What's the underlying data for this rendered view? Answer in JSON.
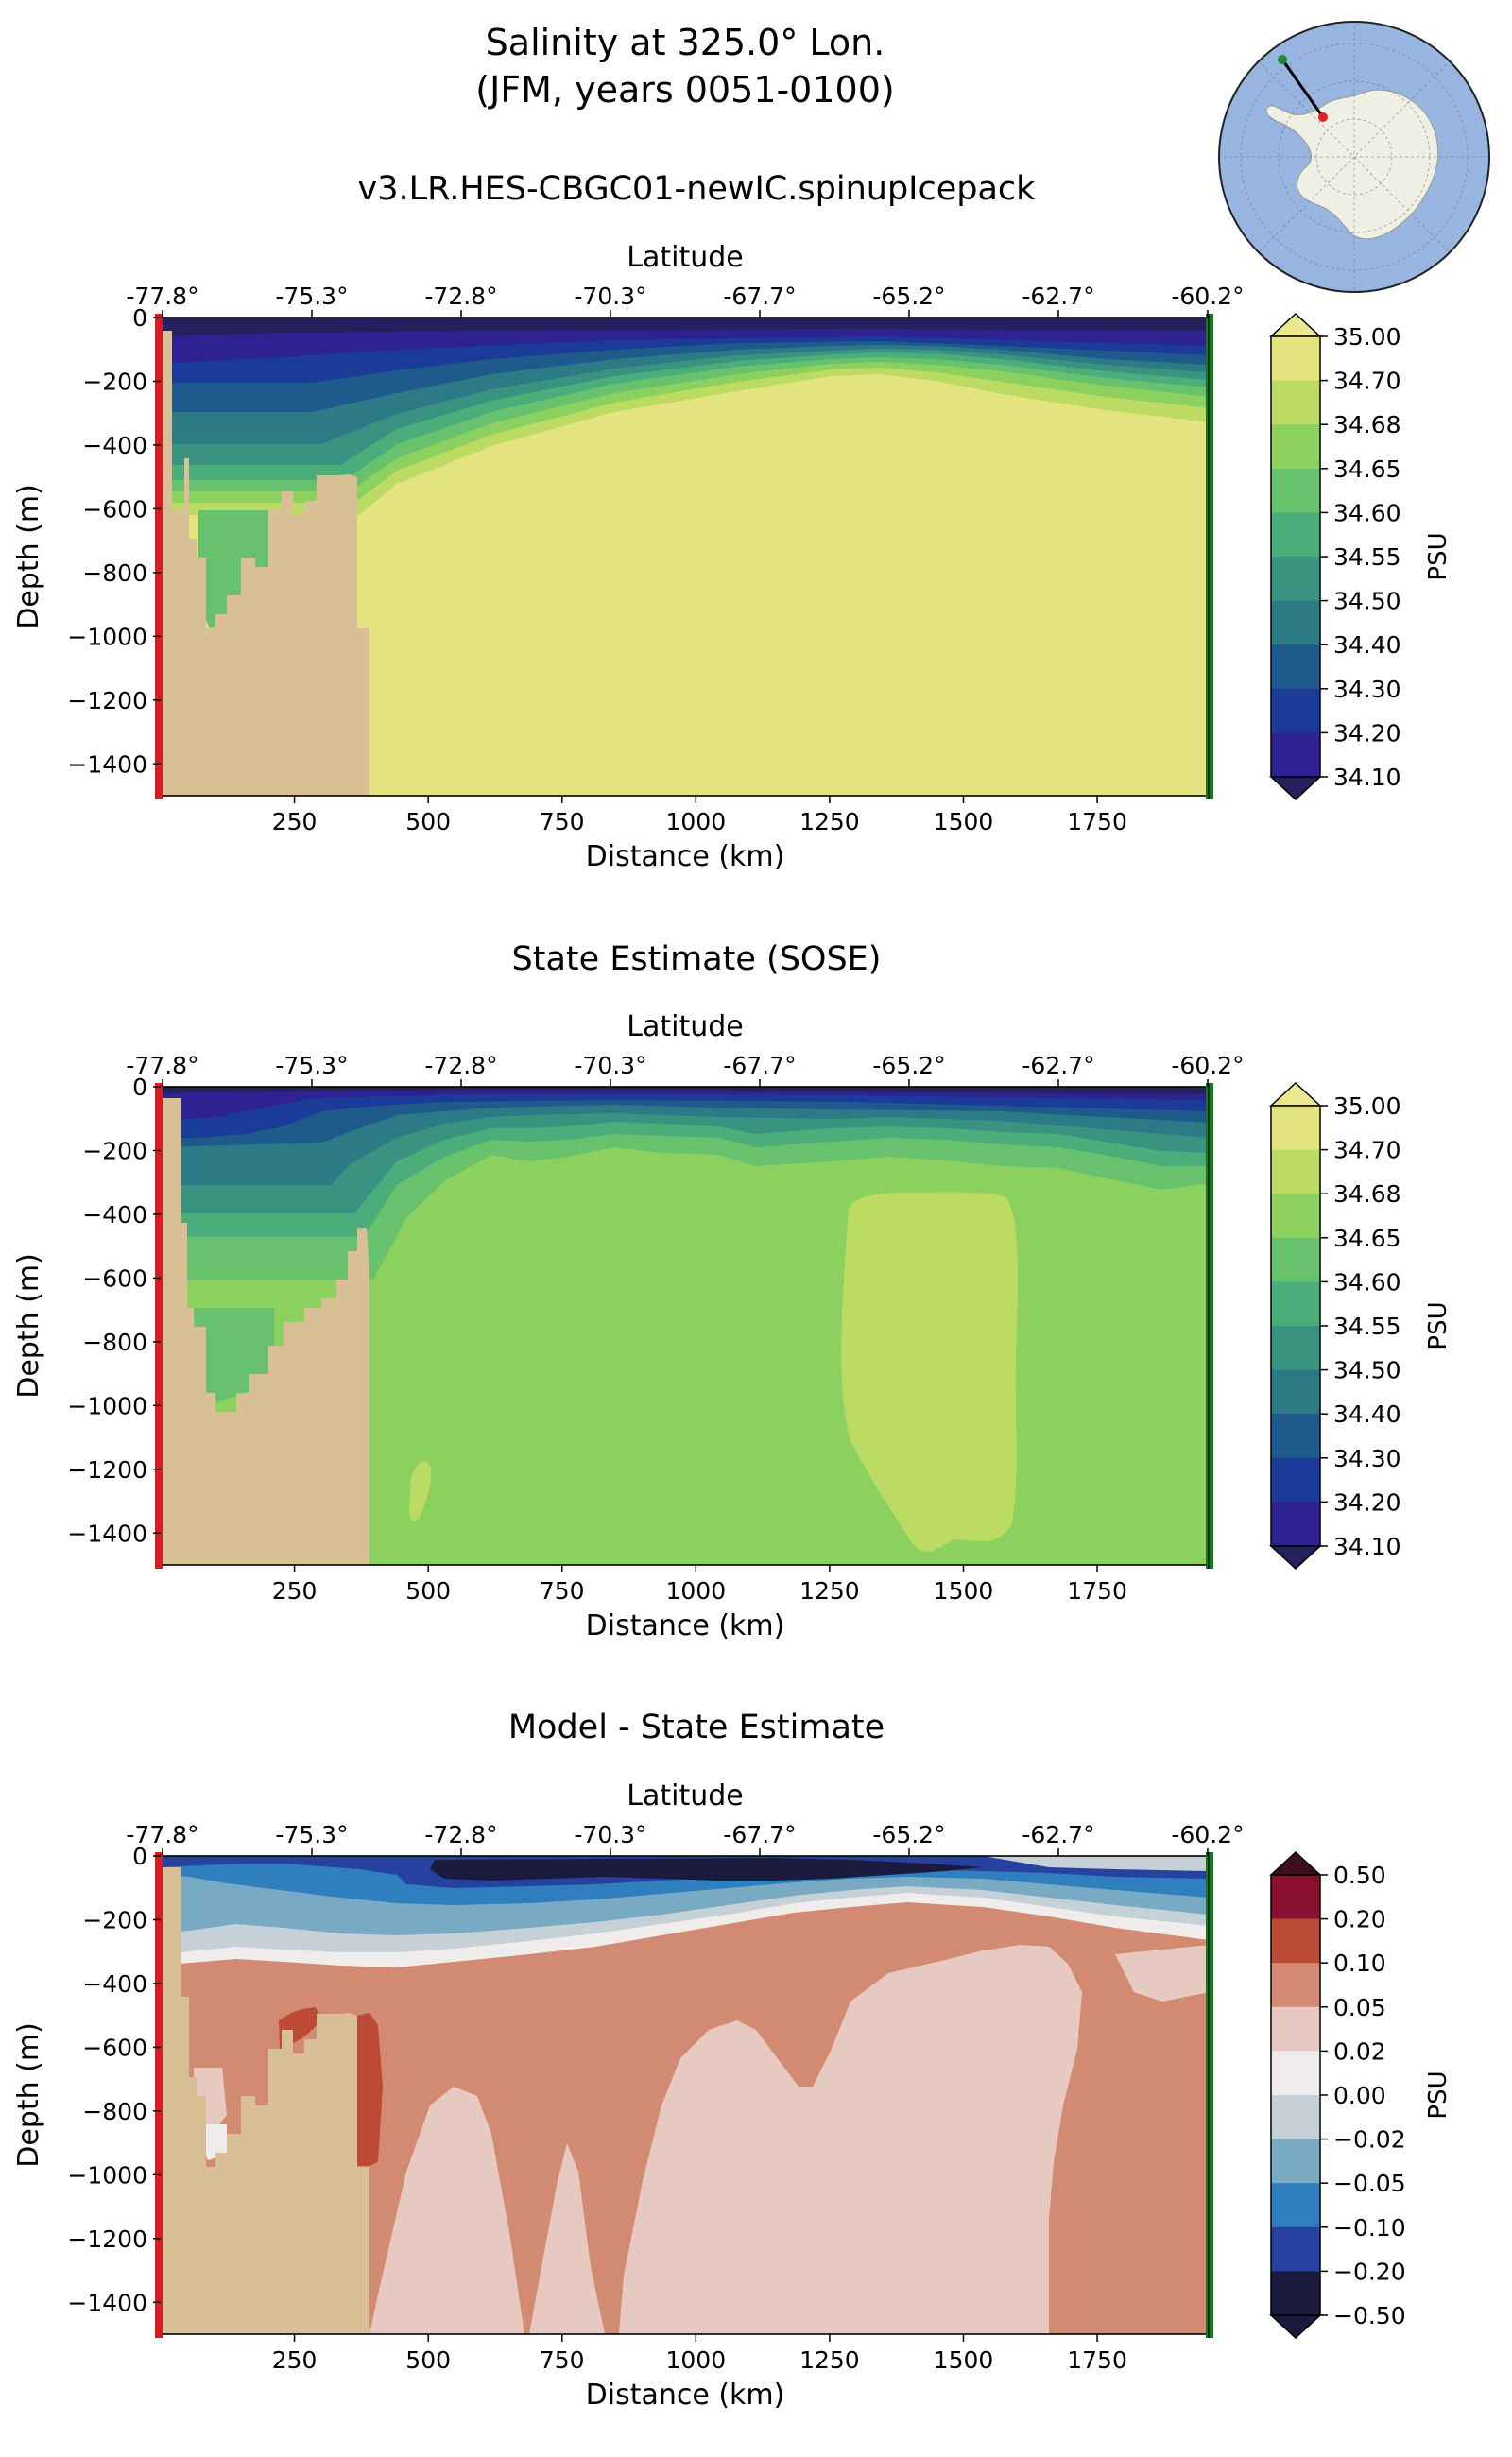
{
  "main_title": {
    "line1": "Salinity at 325.0° Lon.",
    "line2": "(JFM, years 0051-0100)"
  },
  "chart_data": [
    {
      "type": "heatmap",
      "title": "v3.LR.HES-CBGC01-newIC.spinupIcepack",
      "xlabel": "Distance (km)",
      "ylabel": "Depth (m)",
      "top_xlabel": "Latitude",
      "xlim": [
        0,
        1960
      ],
      "ylim": [
        -1500,
        0
      ],
      "x_ticks": [
        "250",
        "500",
        "750",
        "1000",
        "1250",
        "1500",
        "1750"
      ],
      "y_ticks": [
        "0",
        "−200",
        "−400",
        "−600",
        "−800",
        "−1000",
        "−1200",
        "−1400"
      ],
      "lat_ticks": [
        "-77.8°",
        "-75.3°",
        "-72.8°",
        "-70.3°",
        "-67.7°",
        "-65.2°",
        "-62.7°",
        "-60.2°"
      ],
      "colorbar": {
        "label": "PSU",
        "levels": [
          "35.00",
          "34.70",
          "34.68",
          "34.65",
          "34.60",
          "34.55",
          "34.50",
          "34.40",
          "34.30",
          "34.20",
          "34.10"
        ],
        "colors": [
          "#ebe88f",
          "#e3e47f",
          "#bcdb63",
          "#8cd160",
          "#68c26d",
          "#4aad7a",
          "#3a9380",
          "#2b7a86",
          "#1e5a8c",
          "#1b3b98",
          "#2e2293",
          "#26205c"
        ]
      },
      "fields": {
        "surface_layer": "34.10",
        "deep_water": "34.70",
        "shelf_pool": "34.60"
      }
    },
    {
      "type": "heatmap",
      "title": "State Estimate (SOSE)",
      "xlabel": "Distance (km)",
      "ylabel": "Depth (m)",
      "top_xlabel": "Latitude",
      "xlim": [
        0,
        1960
      ],
      "ylim": [
        -1500,
        0
      ],
      "x_ticks": [
        "250",
        "500",
        "750",
        "1000",
        "1250",
        "1500",
        "1750"
      ],
      "y_ticks": [
        "0",
        "−200",
        "−400",
        "−600",
        "−800",
        "−1000",
        "−1200",
        "−1400"
      ],
      "lat_ticks": [
        "-77.8°",
        "-75.3°",
        "-72.8°",
        "-70.3°",
        "-67.7°",
        "-65.2°",
        "-62.7°",
        "-60.2°"
      ],
      "colorbar": {
        "label": "PSU",
        "levels": [
          "35.00",
          "34.70",
          "34.68",
          "34.65",
          "34.60",
          "34.55",
          "34.50",
          "34.40",
          "34.30",
          "34.20",
          "34.10"
        ],
        "colors": [
          "#ebe88f",
          "#e3e47f",
          "#bcdb63",
          "#8cd160",
          "#68c26d",
          "#4aad7a",
          "#3a9380",
          "#2b7a86",
          "#1e5a8c",
          "#1b3b98",
          "#2e2293",
          "#26205c"
        ]
      },
      "fields": {
        "deep_water": "34.65",
        "core_patch": "34.68"
      }
    },
    {
      "type": "heatmap",
      "title": "Model - State Estimate",
      "xlabel": "Distance (km)",
      "ylabel": "Depth (m)",
      "top_xlabel": "Latitude",
      "xlim": [
        0,
        1960
      ],
      "ylim": [
        -1500,
        0
      ],
      "x_ticks": [
        "250",
        "500",
        "750",
        "1000",
        "1250",
        "1500",
        "1750"
      ],
      "y_ticks": [
        "0",
        "−200",
        "−400",
        "−600",
        "−800",
        "−1000",
        "−1200",
        "−1400"
      ],
      "lat_ticks": [
        "-77.8°",
        "-75.3°",
        "-72.8°",
        "-70.3°",
        "-67.7°",
        "-65.2°",
        "-62.7°",
        "-60.2°"
      ],
      "colorbar": {
        "label": "PSU",
        "levels": [
          "0.50",
          "0.20",
          "0.10",
          "0.05",
          "0.02",
          "0.00",
          "−0.02",
          "−0.05",
          "−0.10",
          "−0.20",
          "−0.50"
        ],
        "colors": [
          "#3d0e1f",
          "#8b1030",
          "#bd4a35",
          "#d28b72",
          "#e6c9c1",
          "#f1ecec",
          "#c6d0d7",
          "#78aac4",
          "#2f7fbf",
          "#2641a0",
          "#1a1a3e",
          "#1a1a3e"
        ]
      },
      "fields": {
        "deep_positive": "0.05",
        "mid_positive": "0.10",
        "surface_negative": "−0.20"
      }
    }
  ],
  "inset_map": {
    "ocean_color": "#98b4e0",
    "land_color": "#efefe3",
    "section_start_color": "#e0202a",
    "section_end_color": "#1e8a2e"
  },
  "colors": {
    "bathymetry": "#d8bf96",
    "south_marker": "#d41e24",
    "north_marker": "#157a1f"
  }
}
